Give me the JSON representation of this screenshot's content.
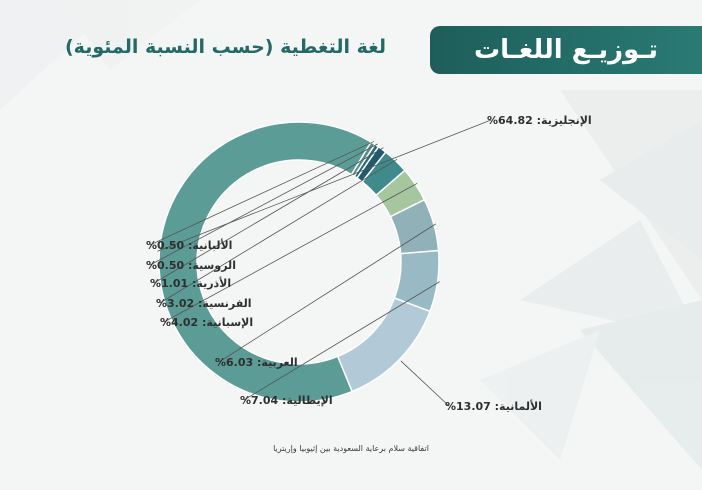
{
  "header": {
    "title": "تـوزيـع اللغـات",
    "subtitle": "لغة التغطية (حسب النسبة المئوية)"
  },
  "footnote": "اتفاقية سلام برعاية السعودية بين إثيوبيا وإريتريا",
  "colors": {
    "title_bg": "#1d5e5a",
    "subtitle_text": "#236a67",
    "label_text": "#2f2f2f",
    "leader_line": "#555555"
  },
  "chart_data": {
    "type": "pie",
    "style": "donut",
    "title": "",
    "series": [
      {
        "label": "الإنجليزية",
        "value": 64.82,
        "display": "الإنجليزية: 64.82%",
        "color": "#5b9c97"
      },
      {
        "label": "الألمانية",
        "value": 13.07,
        "display": "الألمانية: 13.07%",
        "color": "#b2cad7"
      },
      {
        "label": "الإيطالية",
        "value": 7.04,
        "display": "الإيطالية: 7.04%",
        "color": "#98bac5"
      },
      {
        "label": "العربية",
        "value": 6.03,
        "display": "العربية: 6.03%",
        "color": "#8fb1b7"
      },
      {
        "label": "الإسبانية",
        "value": 4.02,
        "display": "الإسبانية: 4.02%",
        "color": "#a6c69f"
      },
      {
        "label": "الفرنسية",
        "value": 3.02,
        "display": "الفرنسية: 3.02%",
        "color": "#3f8b8c"
      },
      {
        "label": "الأذرية",
        "value": 1.01,
        "display": "الأذرية: 1.01%",
        "color": "#1f5a6e"
      },
      {
        "label": "الروسية",
        "value": 0.5,
        "display": "الروسية: 0.50%",
        "color": "#2b6a72"
      },
      {
        "label": "الألبانية",
        "value": 0.5,
        "display": "الألبانية: 0.50%",
        "color": "#4f8f8c"
      }
    ]
  }
}
